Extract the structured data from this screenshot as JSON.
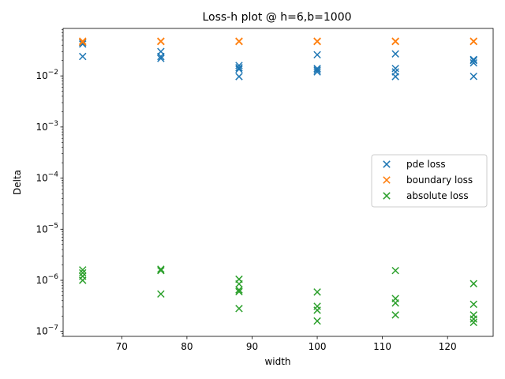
{
  "chart_data": {
    "type": "scatter",
    "title": "Loss-h plot @ h=6,b=1000",
    "xlabel": "width",
    "ylabel": "Delta",
    "yscale": "log",
    "xlim": [
      61,
      127
    ],
    "ylim": [
      8e-08,
      0.085
    ],
    "xticks": [
      70,
      80,
      90,
      100,
      110,
      120
    ],
    "yticks": [
      {
        "value": 1e-07,
        "label": "10",
        "exp": "−7"
      },
      {
        "value": 1e-06,
        "label": "10",
        "exp": "−6"
      },
      {
        "value": 1e-05,
        "label": "10",
        "exp": "−5"
      },
      {
        "value": 0.0001,
        "label": "10",
        "exp": "−4"
      },
      {
        "value": 0.001,
        "label": "10",
        "exp": "−3"
      },
      {
        "value": 0.01,
        "label": "10",
        "exp": "−2"
      }
    ],
    "grid": false,
    "legend_position": "center-right",
    "series": [
      {
        "name": "pde loss",
        "color": "#1f77b4",
        "marker": "x",
        "points": [
          [
            64,
            0.045
          ],
          [
            64,
            0.042
          ],
          [
            64,
            0.024
          ],
          [
            76,
            0.03
          ],
          [
            76,
            0.024
          ],
          [
            76,
            0.022
          ],
          [
            88,
            0.016
          ],
          [
            88,
            0.0145
          ],
          [
            88,
            0.0135
          ],
          [
            88,
            0.0097
          ],
          [
            100,
            0.026
          ],
          [
            100,
            0.014
          ],
          [
            100,
            0.013
          ],
          [
            100,
            0.012
          ],
          [
            112,
            0.027
          ],
          [
            112,
            0.014
          ],
          [
            112,
            0.012
          ],
          [
            112,
            0.0097
          ],
          [
            124,
            0.021
          ],
          [
            124,
            0.02
          ],
          [
            124,
            0.018
          ],
          [
            124,
            0.0098
          ]
        ]
      },
      {
        "name": "boundary loss",
        "color": "#ff7f0e",
        "marker": "x",
        "points": [
          [
            64,
            0.048
          ],
          [
            64,
            0.046
          ],
          [
            76,
            0.048
          ],
          [
            76,
            0.047
          ],
          [
            88,
            0.048
          ],
          [
            88,
            0.047
          ],
          [
            100,
            0.048
          ],
          [
            100,
            0.047
          ],
          [
            112,
            0.048
          ],
          [
            112,
            0.047
          ],
          [
            124,
            0.048
          ],
          [
            124,
            0.047
          ]
        ]
      },
      {
        "name": "absolute loss",
        "color": "#2ca02c",
        "marker": "x",
        "points": [
          [
            64,
            1.6e-06
          ],
          [
            64,
            1.4e-06
          ],
          [
            64,
            1.2e-06
          ],
          [
            64,
            1e-06
          ],
          [
            76,
            1.65e-06
          ],
          [
            76,
            1.55e-06
          ],
          [
            76,
            5.4e-07
          ],
          [
            88,
            1.05e-06
          ],
          [
            88,
            8.5e-07
          ],
          [
            88,
            6.5e-07
          ],
          [
            88,
            6e-07
          ],
          [
            88,
            2.8e-07
          ],
          [
            100,
            5.9e-07
          ],
          [
            100,
            3.1e-07
          ],
          [
            100,
            2.6e-07
          ],
          [
            100,
            1.6e-07
          ],
          [
            112,
            1.55e-06
          ],
          [
            112,
            4.4e-07
          ],
          [
            112,
            3.6e-07
          ],
          [
            112,
            2.1e-07
          ],
          [
            124,
            8.6e-07
          ],
          [
            124,
            3.4e-07
          ],
          [
            124,
            2.1e-07
          ],
          [
            124,
            1.75e-07
          ],
          [
            124,
            1.5e-07
          ]
        ]
      }
    ]
  }
}
